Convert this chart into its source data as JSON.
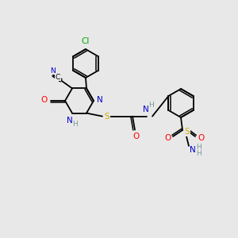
{
  "background_color": "#e8e8e8",
  "colors": {
    "C": "#000000",
    "N": "#0000cc",
    "O": "#ff0000",
    "S": "#ccaa00",
    "Cl": "#00aa00",
    "H": "#7a9999",
    "bond": "#000000"
  },
  "lw": 1.3,
  "fs": 7.5,
  "fs_small": 6.5
}
